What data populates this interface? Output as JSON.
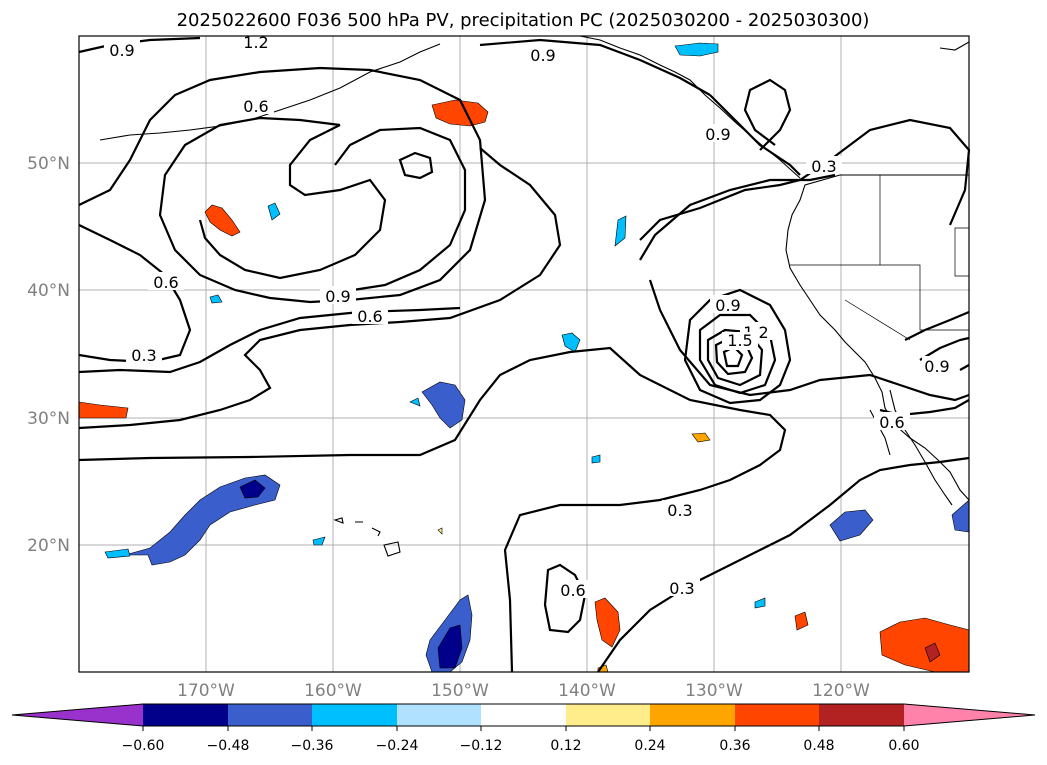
{
  "title": "2025022600 F036 500 hPa PV, precipitation PC (2025030200 - 2025030300)",
  "lon_labels": [
    "170°W",
    "160°W",
    "150°W",
    "140°W",
    "130°W",
    "120°W"
  ],
  "lat_labels": [
    "50°N",
    "40°N",
    "30°N",
    "20°N"
  ],
  "map_extent": {
    "lon": [
      -180,
      -110
    ],
    "lat": [
      10,
      60
    ]
  },
  "contour_labels": [
    "1.2",
    "0.9",
    "0.9",
    "0.6",
    "0.6",
    "0.3",
    "0.9",
    "0.6",
    "0.3",
    "0.9",
    "1.2",
    "1.5",
    "0.9",
    "0.3",
    "0.3",
    "0.6",
    "0.9",
    "0.6",
    "0.3",
    "0.6"
  ],
  "colorbar": {
    "ticks": [
      "−0.60",
      "−0.48",
      "−0.36",
      "−0.24",
      "−0.12",
      "0.12",
      "0.24",
      "0.36",
      "0.48",
      "0.60"
    ],
    "colors": [
      "#9932cc",
      "#00008b",
      "#3a5fcd",
      "#00bfff",
      "#b0e2ff",
      "#ffffff",
      "#ffec8b",
      "#ffa500",
      "#ff4500",
      "#b22222",
      "#ff82ab"
    ]
  },
  "colors": {
    "blue_fill": "#3a5fcd",
    "dark_blue": "#00008b",
    "light_blue": "#00bfff",
    "red_fill": "#ff4500",
    "orange": "#ffa500",
    "yellow": "#ffec8b",
    "dark_red": "#b22222"
  }
}
